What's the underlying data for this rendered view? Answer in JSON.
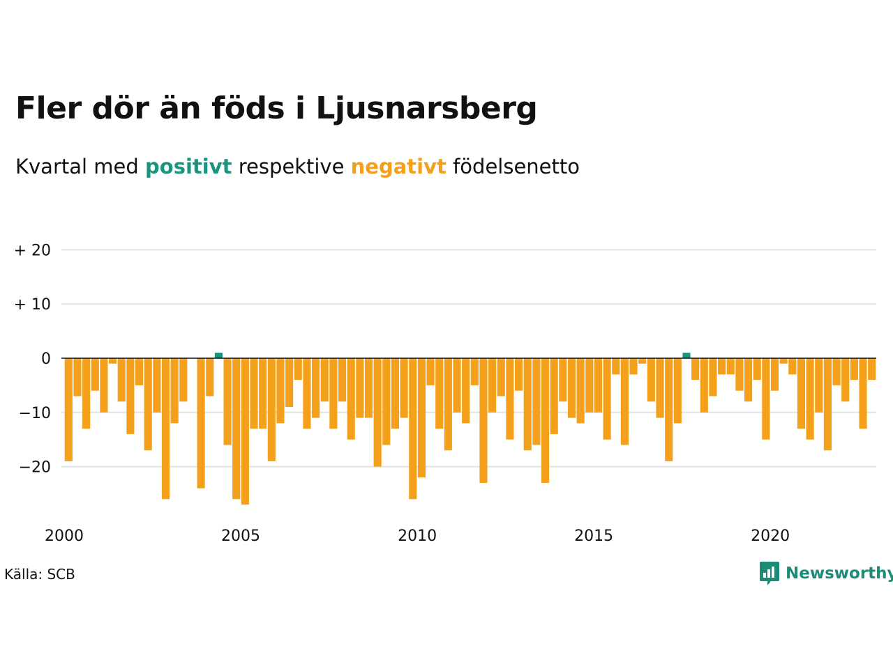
{
  "header": {
    "title": "Fler dör än föds i Ljusnarsberg",
    "subtitle_prefix": "Kvartal med ",
    "subtitle_positive": "positivt",
    "subtitle_middle": " respektive ",
    "subtitle_negative": "negativt",
    "subtitle_suffix": " födelsenetto"
  },
  "footer": {
    "source": "Källa: SCB",
    "brand": "Newsworthy"
  },
  "colors": {
    "positive": "#1a9480",
    "negative": "#f5a01a",
    "grid": "#e3e3e3",
    "zero_line": "#111111"
  },
  "chart_data": {
    "type": "bar",
    "title": "Fler dör än föds i Ljusnarsberg",
    "xlabel": "",
    "ylabel": "",
    "ylim": [
      -30,
      20
    ],
    "grid": true,
    "y_ticks": [
      {
        "value": 20,
        "label": "+ 20"
      },
      {
        "value": 10,
        "label": "+ 10"
      },
      {
        "value": 0,
        "label": "0"
      },
      {
        "value": -10,
        "label": "−10"
      },
      {
        "value": -20,
        "label": "−20"
      }
    ],
    "x_ticks": [
      {
        "value": 2000,
        "label": "2000"
      },
      {
        "value": 2005,
        "label": "2005"
      },
      {
        "value": 2010,
        "label": "2010"
      },
      {
        "value": 2015,
        "label": "2015"
      },
      {
        "value": 2020,
        "label": "2020"
      }
    ],
    "first_year": 2000,
    "quarters_per_year": 4,
    "values": [
      -19,
      -7,
      -13,
      -6,
      -10,
      -1,
      -8,
      -14,
      -5,
      -17,
      -10,
      -26,
      -12,
      -8,
      0,
      -24,
      -7,
      1,
      -16,
      -26,
      -27,
      -13,
      -13,
      -19,
      -12,
      -9,
      -4,
      -13,
      -11,
      -8,
      -13,
      -8,
      -15,
      -11,
      -11,
      -20,
      -16,
      -13,
      -11,
      -26,
      -22,
      -5,
      -13,
      -17,
      -10,
      -12,
      -5,
      -23,
      -10,
      -7,
      -15,
      -6,
      -17,
      -16,
      -23,
      -14,
      -8,
      -11,
      -12,
      -10,
      -10,
      -15,
      -3,
      -16,
      -3,
      -1,
      -8,
      -11,
      -19,
      -12,
      1,
      -4,
      -10,
      -7,
      -3,
      -3,
      -6,
      -8,
      -4,
      -15,
      -6,
      -1,
      -3,
      -13,
      -15,
      -10,
      -17,
      -5,
      -8,
      -4,
      -13,
      -4
    ]
  }
}
